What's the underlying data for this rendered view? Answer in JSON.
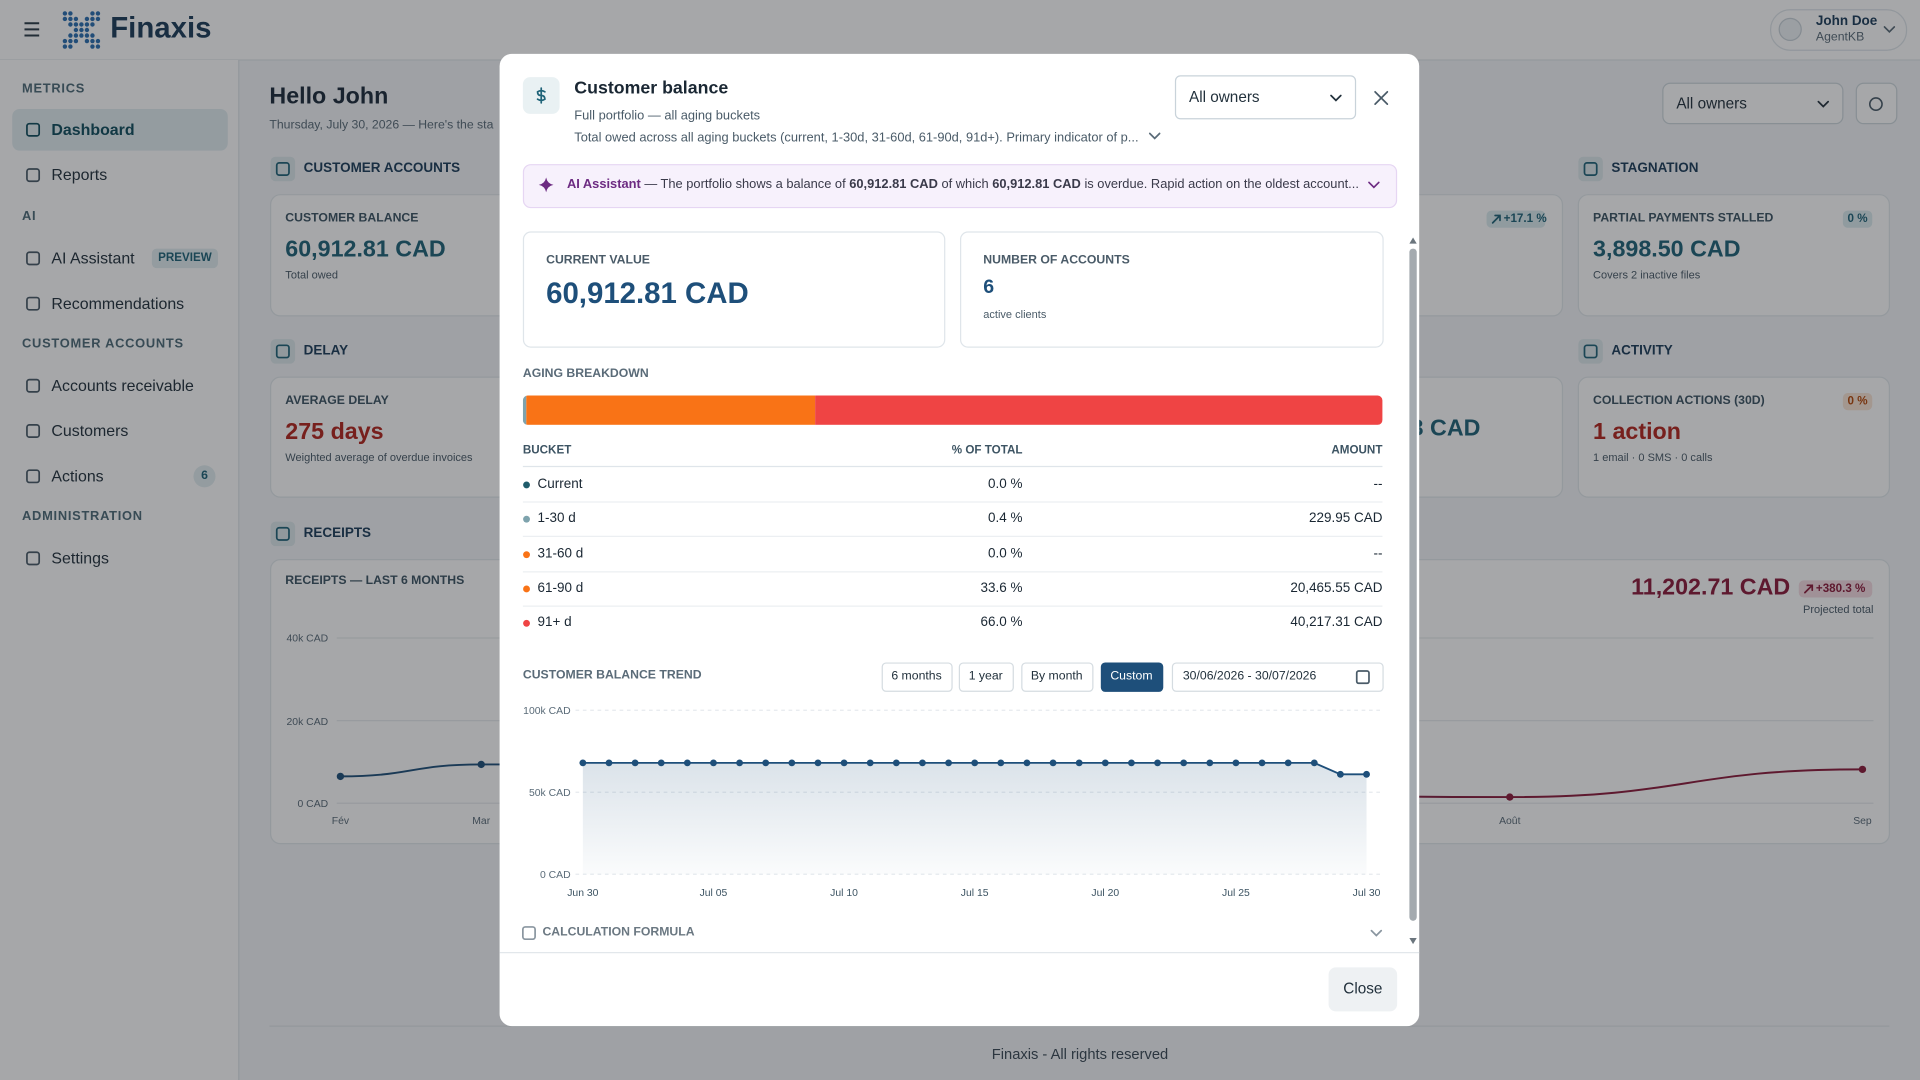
{
  "header": {
    "brand": "Finaxis",
    "user": {
      "name": "John Doe",
      "role": "AgentKB"
    }
  },
  "sidebar": {
    "sections": [
      {
        "title": "METRICS",
        "items": [
          {
            "label": "Dashboard"
          },
          {
            "label": "Reports"
          }
        ]
      },
      {
        "title": "AI",
        "items": [
          {
            "label": "AI Assistant",
            "badge": "PREVIEW"
          },
          {
            "label": "Recommendations"
          }
        ]
      },
      {
        "title": "CUSTOMER ACCOUNTS",
        "items": [
          {
            "label": "Accounts receivable"
          },
          {
            "label": "Customers"
          },
          {
            "label": "Actions",
            "badge": "6"
          }
        ]
      },
      {
        "title": "ADMINISTRATION",
        "items": [
          {
            "label": "Settings"
          }
        ]
      }
    ]
  },
  "dashboard": {
    "greeting": "Hello John",
    "date_line": "Thursday, July 30, 2026 — Here's the sta",
    "owner_filter": "All owners",
    "customer_accounts": {
      "title": "CUSTOMER ACCOUNTS",
      "card": {
        "label": "CUSTOMER BALANCE",
        "value": "60,912.81 CAD",
        "note": "Total owed"
      },
      "partial_card_badge": "+17.1 %"
    },
    "stagnation": {
      "title": "STAGNATION",
      "card": {
        "label": "PARTIAL PAYMENTS STALLED",
        "badge": "0 %",
        "value": "3,898.50 CAD",
        "note": "Covers 2 inactive files"
      }
    },
    "delay": {
      "title": "DELAY",
      "card": {
        "label": "AVERAGE DELAY",
        "value": "275 days",
        "note": "Weighted average of overdue invoices"
      },
      "partial_card_value": "3 CAD"
    },
    "activity": {
      "title": "ACTIVITY",
      "card": {
        "label": "COLLECTION ACTIONS (30D)",
        "badge": "0 %",
        "value": "1 action",
        "note": "1 email · 0 SMS · 0 calls"
      }
    },
    "receipts": {
      "title": "RECEIPTS",
      "card_title": "RECEIPTS — LAST 6 MONTHS",
      "projected_value": "11,202.71 CAD",
      "projected_badge": "+380.3 %",
      "projected_label": "Projected total",
      "chart": {
        "type": "line",
        "categories": [
          "Fév",
          "Mar",
          "Août",
          "Sep"
        ],
        "values": [
          6500,
          9400,
          1500,
          8200
        ],
        "colors": [
          "#1e4f7a",
          "#1e4f7a",
          "#8b1a3a",
          "#8b1a3a"
        ],
        "ylim": [
          0,
          40000
        ],
        "yticks": [
          {
            "value": 0,
            "label": "0 CAD"
          },
          {
            "value": 20000,
            "label": "20k CAD"
          },
          {
            "value": 40000,
            "label": "40k CAD"
          }
        ],
        "grid": true
      }
    }
  },
  "footer": "Finaxis - All rights reserved",
  "modal": {
    "title": "Customer balance",
    "subtitle": "Full portfolio — all aging buckets",
    "description": "Total owed across all aging buckets (current, 1-30d, 31-60d, 61-90d, 91d+). Primary indicator of p...",
    "owner_filter": "All owners",
    "ai_banner": {
      "label": "AI Assistant",
      "text_1": "— The portfolio shows a balance of",
      "amount_1": "60,912.81 CAD",
      "text_2": "of which",
      "amount_2": "60,912.81 CAD",
      "text_3": "is overdue. Rapid action on the oldest account..."
    },
    "kpis": [
      {
        "label": "CURRENT VALUE",
        "value": "60,912.81 CAD"
      },
      {
        "label": "NUMBER OF ACCOUNTS",
        "value": "6",
        "note": "active clients"
      }
    ],
    "aging": {
      "title": "AGING BREAKDOWN",
      "columns": [
        "BUCKET",
        "% OF TOTAL",
        "AMOUNT"
      ],
      "buckets": [
        "Current",
        "1-30 d",
        "31-60 d",
        "61-90 d",
        "91+ d"
      ],
      "values": [
        0.0,
        0.4,
        0.0,
        33.6,
        66.0
      ],
      "value_labels": [
        "0.0 %",
        "0.4 %",
        "0.0 %",
        "33.6 %",
        "66.0 %"
      ],
      "amounts": [
        "--",
        "229.95 CAD",
        "--",
        "20,465.55 CAD",
        "40,217.31 CAD"
      ],
      "colors": [
        "#1f5c6b",
        "#7ea3ad",
        "#f97316",
        "#f97316",
        "#ef4444"
      ]
    },
    "trend": {
      "title": "CUSTOMER BALANCE TREND",
      "ranges": [
        "6 months",
        "1 year",
        "By month",
        "Custom"
      ],
      "active_range": 3,
      "date_range": "30/06/2026 - 30/07/2026",
      "chart": {
        "type": "line",
        "color": "#1e4f7a",
        "categories": [
          "Jun 30",
          null,
          null,
          null,
          null,
          "Jul 05",
          null,
          null,
          null,
          null,
          "Jul 10",
          null,
          null,
          null,
          null,
          "Jul 15",
          null,
          null,
          null,
          null,
          "Jul 20",
          null,
          null,
          null,
          null,
          "Jul 25",
          null,
          null,
          null,
          null,
          "Jul 30"
        ],
        "values": [
          67900,
          67900,
          67900,
          67900,
          67900,
          67900,
          67900,
          67900,
          67900,
          67900,
          67900,
          67900,
          67900,
          67900,
          67900,
          67900,
          67900,
          67900,
          67900,
          67900,
          67900,
          67900,
          67900,
          67900,
          67900,
          67900,
          67900,
          67900,
          67900,
          60912.81,
          60912.81
        ],
        "ylim": [
          0,
          100000
        ],
        "yticks": [
          {
            "value": 0,
            "label": "0 CAD"
          },
          {
            "value": 50000,
            "label": "50k CAD"
          },
          {
            "value": 100000,
            "label": "100k CAD"
          }
        ],
        "grid": true
      }
    },
    "formula": "CALCULATION FORMULA",
    "close": "Close"
  }
}
